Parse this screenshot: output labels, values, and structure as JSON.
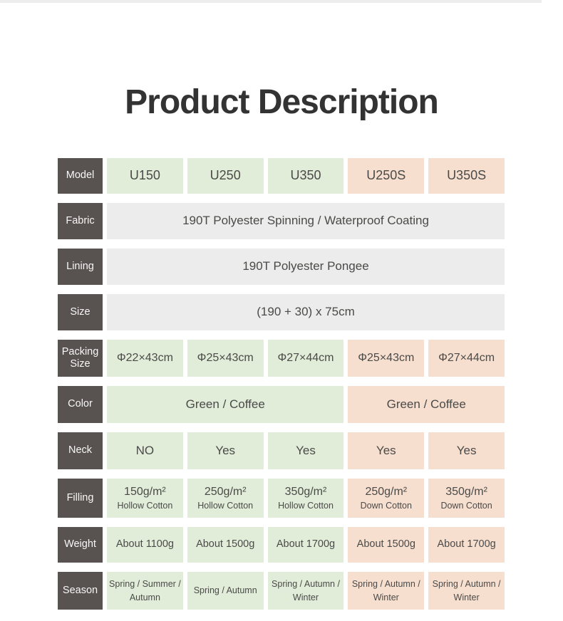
{
  "page": {
    "title": "Product Description"
  },
  "palette": {
    "label_bg": "#585250",
    "green_cell": "#e1edd9",
    "peach_cell": "#f7dfd0",
    "gray_cell": "#ececec",
    "cell_text": "#4a4a48",
    "title_text": "#333333"
  },
  "table": {
    "model": {
      "label": "Model",
      "cells": [
        "U150",
        "U250",
        "U350",
        "U250S",
        "U350S"
      ]
    },
    "fabric": {
      "label": "Fabric",
      "value": "190T Polyester Spinning / Waterproof Coating"
    },
    "lining": {
      "label": "Lining",
      "value": "190T Polyester Pongee"
    },
    "size": {
      "label": "Size",
      "value": "(190 + 30) x 75cm"
    },
    "packing": {
      "label": "Packing Size",
      "cells": [
        "Φ22×43cm",
        "Φ25×43cm",
        "Φ27×44cm",
        "Φ25×43cm",
        "Φ27×44cm"
      ]
    },
    "color": {
      "label": "Color",
      "green_value": "Green / Coffee",
      "peach_value": "Green / Coffee"
    },
    "neck": {
      "label": "Neck",
      "cells": [
        "NO",
        "Yes",
        "Yes",
        "Yes",
        "Yes"
      ]
    },
    "filling": {
      "label": "Filling",
      "cells": [
        {
          "amount": "150g/m²",
          "type": "Hollow Cotton"
        },
        {
          "amount": "250g/m²",
          "type": "Hollow Cotton"
        },
        {
          "amount": "350g/m²",
          "type": "Hollow Cotton"
        },
        {
          "amount": "250g/m²",
          "type": "Down Cotton"
        },
        {
          "amount": "350g/m²",
          "type": "Down Cotton"
        }
      ]
    },
    "weight": {
      "label": "Weight",
      "cells": [
        "About 1100g",
        "About 1500g",
        "About 1700g",
        "About 1500g",
        "About 1700g"
      ]
    },
    "season": {
      "label": "Season",
      "cells": [
        "Spring / Summer / Autumn",
        "Spring / Autumn",
        "Spring / Autumn / Winter",
        "Spring / Autumn / Winter",
        "Spring / Autumn / Winter"
      ]
    }
  }
}
